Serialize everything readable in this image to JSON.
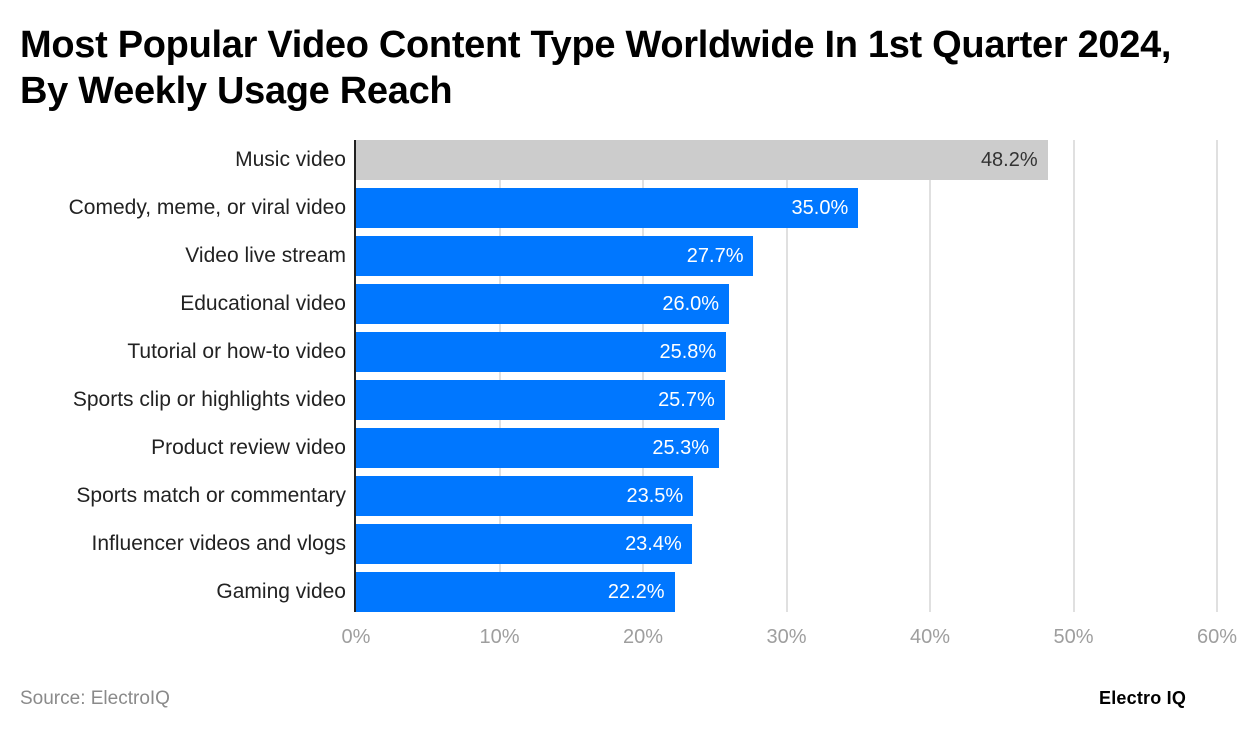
{
  "title": "Most Popular Video Content Type Worldwide In 1st Quarter 2024, By Weekly Usage Reach",
  "footer": {
    "source": "Source: ElectroIQ",
    "brand": "Electro IQ"
  },
  "colors": {
    "bar": "#0077ff",
    "highlight_bar": "#cccccc",
    "gridline": "#e0e0e0",
    "axis_line": "#222222",
    "tick_label": "#9e9e9e"
  },
  "chart_data": {
    "type": "bar",
    "orientation": "horizontal",
    "title": "Most Popular Video Content Type Worldwide In 1st Quarter 2024, By Weekly Usage Reach",
    "xlabel": "",
    "ylabel": "",
    "categories": [
      "Music video",
      "Comedy, meme, or viral video",
      "Video live stream",
      "Educational video",
      "Tutorial or how-to video",
      "Sports clip or highlights video",
      "Product review video",
      "Sports match or commentary",
      "Influencer videos and vlogs",
      "Gaming video"
    ],
    "values": [
      48.2,
      35.0,
      27.7,
      26.0,
      25.8,
      25.7,
      25.3,
      23.5,
      23.4,
      22.2
    ],
    "value_labels": [
      "48.2%",
      "35.0%",
      "27.7%",
      "26.0%",
      "25.8%",
      "25.7%",
      "25.3%",
      "23.5%",
      "23.4%",
      "22.2%"
    ],
    "highlighted_index": 0,
    "xlim": [
      0,
      60
    ],
    "x_ticks": [
      0,
      10,
      20,
      30,
      40,
      50,
      60
    ],
    "x_tick_labels": [
      "0%",
      "10%",
      "20%",
      "30%",
      "40%",
      "50%",
      "60%"
    ],
    "grid": true,
    "legend": null,
    "unit": "%"
  }
}
